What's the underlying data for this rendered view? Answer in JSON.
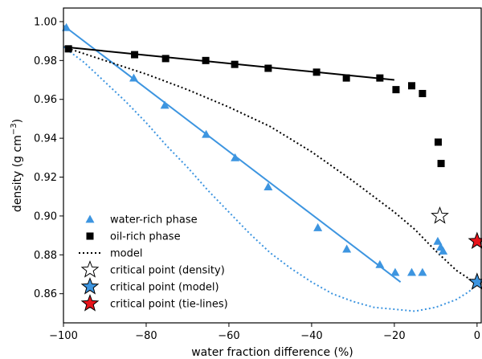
{
  "chart_data": {
    "type": "scatter",
    "xlabel": "water fraction difference (%)",
    "ylabel_main": "density (g cm",
    "ylabel_sup": "−3",
    "ylabel_close": ")",
    "xlim": [
      -100,
      1
    ],
    "ylim": [
      0.845,
      1.007
    ],
    "xticks": [
      -100,
      -80,
      -60,
      -40,
      -20,
      0
    ],
    "xtick_labels": [
      "−100",
      "−80",
      "−60",
      "−40",
      "−20",
      "0"
    ],
    "yticks": [
      0.86,
      0.88,
      0.9,
      0.92,
      0.94,
      0.96,
      0.98,
      1.0
    ],
    "ytick_labels": [
      "0.86",
      "0.88",
      "0.90",
      "0.92",
      "0.94",
      "0.96",
      "0.98",
      "1.00"
    ],
    "grid": false,
    "legend_position": "lower-left",
    "series": [
      {
        "name": "water-rich phase",
        "kind": "markers",
        "marker": "triangle",
        "color": "#3d95e0",
        "points": [
          [
            -99.3,
            0.997
          ],
          [
            -83,
            0.971
          ],
          [
            -75.5,
            0.957
          ],
          [
            -65.5,
            0.942
          ],
          [
            -58.5,
            0.93
          ],
          [
            -50.5,
            0.915
          ],
          [
            -38.5,
            0.894
          ],
          [
            -31.5,
            0.883
          ],
          [
            -23.5,
            0.875
          ],
          [
            -19.8,
            0.871
          ],
          [
            -15.8,
            0.871
          ],
          [
            -13.2,
            0.871
          ],
          [
            -9.5,
            0.887
          ],
          [
            -8.8,
            0.884
          ],
          [
            -8.2,
            0.882
          ]
        ]
      },
      {
        "name": "oil-rich phase",
        "kind": "markers",
        "marker": "square",
        "color": "#000000",
        "points": [
          [
            -98.8,
            0.986
          ],
          [
            -82.8,
            0.983
          ],
          [
            -75.3,
            0.981
          ],
          [
            -65.6,
            0.98
          ],
          [
            -58.6,
            0.978
          ],
          [
            -50.5,
            0.976
          ],
          [
            -38.8,
            0.974
          ],
          [
            -31.6,
            0.971
          ],
          [
            -23.5,
            0.971
          ],
          [
            -19.6,
            0.965
          ],
          [
            -15.8,
            0.967
          ],
          [
            -13.2,
            0.963
          ],
          [
            -9.4,
            0.938
          ],
          [
            -8.7,
            0.927
          ]
        ]
      },
      {
        "name": "water-rich fit",
        "kind": "line",
        "color": "#3d95e0",
        "points": [
          [
            -100,
            0.998
          ],
          [
            -18.5,
            0.866
          ]
        ]
      },
      {
        "name": "oil-rich fit",
        "kind": "line",
        "color": "#000000",
        "points": [
          [
            -100,
            0.987
          ],
          [
            -20,
            0.97
          ]
        ]
      },
      {
        "name": "model",
        "kind": "dotted",
        "color": "#000000",
        "points": [
          [
            -100,
            0.987
          ],
          [
            -90,
            0.98
          ],
          [
            -80,
            0.973
          ],
          [
            -70,
            0.965
          ],
          [
            -60,
            0.956
          ],
          [
            -50,
            0.946
          ],
          [
            -40,
            0.933
          ],
          [
            -30,
            0.918
          ],
          [
            -20,
            0.902
          ],
          [
            -15,
            0.893
          ],
          [
            -10,
            0.882
          ],
          [
            -5,
            0.872
          ],
          [
            0,
            0.865
          ]
        ]
      },
      {
        "name": "model water",
        "kind": "dotted",
        "color": "#3d95e0",
        "points": [
          [
            -100,
            0.987
          ],
          [
            -95,
            0.979
          ],
          [
            -90,
            0.969
          ],
          [
            -85,
            0.959
          ],
          [
            -80,
            0.948
          ],
          [
            -75,
            0.936
          ],
          [
            -70,
            0.925
          ],
          [
            -65,
            0.913
          ],
          [
            -60,
            0.902
          ],
          [
            -55,
            0.891
          ],
          [
            -50,
            0.881
          ],
          [
            -45,
            0.873
          ],
          [
            -40,
            0.866
          ],
          [
            -35,
            0.86
          ],
          [
            -30,
            0.856
          ],
          [
            -25,
            0.853
          ],
          [
            -20,
            0.852
          ],
          [
            -15,
            0.851
          ],
          [
            -10,
            0.853
          ],
          [
            -5,
            0.857
          ],
          [
            -2,
            0.861
          ],
          [
            0,
            0.865
          ]
        ]
      },
      {
        "name": "critical point (density)",
        "kind": "star",
        "fill": "#ffffff",
        "points": [
          [
            -9.0,
            0.9
          ]
        ]
      },
      {
        "name": "critical point (model)",
        "kind": "star",
        "fill": "#3d95e0",
        "points": [
          [
            0,
            0.866
          ]
        ]
      },
      {
        "name": "critical point (tie-lines)",
        "kind": "star",
        "fill": "#e8141b",
        "points": [
          [
            0,
            0.887
          ]
        ]
      }
    ],
    "legend": [
      {
        "label": "water-rich phase",
        "symbol": "triangle",
        "color": "#3d95e0"
      },
      {
        "label": "oil-rich phase",
        "symbol": "square",
        "color": "#000000"
      },
      {
        "label": "model",
        "symbol": "dotted",
        "color": "#000000"
      },
      {
        "label": "critical point (density)",
        "symbol": "star",
        "color": "#ffffff"
      },
      {
        "label": "critical point (model)",
        "symbol": "star",
        "color": "#3d95e0"
      },
      {
        "label": "critical point (tie-lines)",
        "symbol": "star",
        "color": "#e8141b"
      }
    ]
  }
}
